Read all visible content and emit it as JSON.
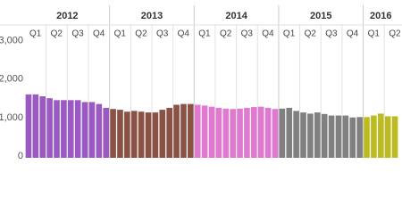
{
  "chart_data": {
    "type": "bar",
    "ylim": [
      0,
      3200
    ],
    "yticks": [
      0,
      {
        "value": 1000,
        "label": "1,000"
      },
      {
        "value": 2000,
        "label": "2,000"
      },
      {
        "value": 3000,
        "label": "3,000"
      }
    ],
    "grid": false,
    "series": [
      {
        "name": "2012",
        "color": "#9b59c2",
        "quarters": [
          "Q1",
          "Q2",
          "Q3",
          "Q4"
        ],
        "values": [
          1650,
          1650,
          1600,
          1550,
          1500,
          1500,
          1500,
          1500,
          1450,
          1450,
          1400,
          1300
        ]
      },
      {
        "name": "2013",
        "color": "#8b5144",
        "quarters": [
          "Q1",
          "Q2",
          "Q3",
          "Q4"
        ],
        "values": [
          1270,
          1250,
          1200,
          1220,
          1200,
          1180,
          1180,
          1250,
          1300,
          1380,
          1400,
          1400
        ]
      },
      {
        "name": "2014",
        "color": "#e07ad0",
        "quarters": [
          "Q1",
          "Q2",
          "Q3",
          "Q4"
        ],
        "values": [
          1380,
          1360,
          1330,
          1300,
          1280,
          1270,
          1280,
          1300,
          1320,
          1330,
          1300,
          1270
        ]
      },
      {
        "name": "2015",
        "color": "#808080",
        "quarters": [
          "Q1",
          "Q2",
          "Q3",
          "Q4"
        ],
        "values": [
          1280,
          1300,
          1220,
          1180,
          1150,
          1180,
          1140,
          1100,
          1100,
          1100,
          1050,
          1060
        ]
      },
      {
        "name": "2016",
        "color": "#bcbc22",
        "quarters": [
          "Q1",
          "Q2"
        ],
        "values": [
          1060,
          1100,
          1150,
          1080,
          1080
        ]
      }
    ]
  }
}
